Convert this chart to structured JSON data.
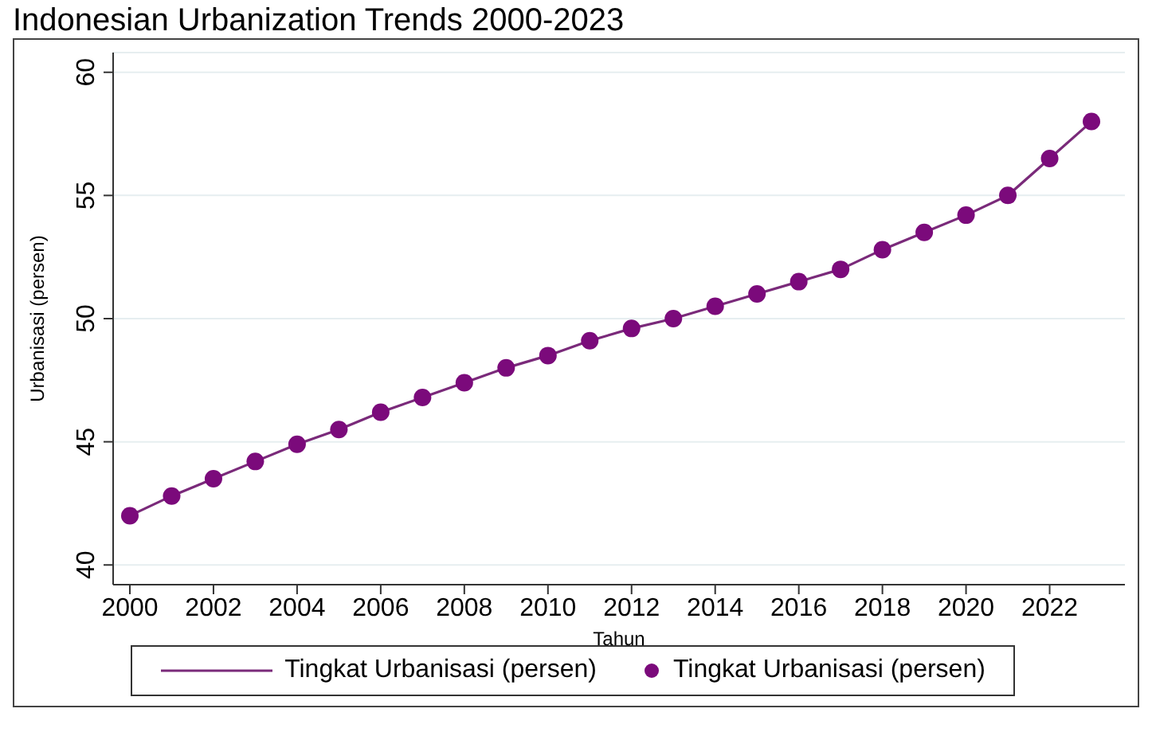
{
  "chart_data": {
    "type": "line",
    "title": "Indonesian Urbanization Trends 2000-2023",
    "xlabel": "Tahun",
    "ylabel": "Urbanisasi (persen)",
    "x": [
      2000,
      2001,
      2002,
      2003,
      2004,
      2005,
      2006,
      2007,
      2008,
      2009,
      2010,
      2011,
      2012,
      2013,
      2014,
      2015,
      2016,
      2017,
      2018,
      2019,
      2020,
      2021,
      2022,
      2023
    ],
    "series": [
      {
        "name": "Tingkat Urbanisasi (persen)",
        "type": "line",
        "color": "#7a2a7a",
        "marker": "none",
        "values": [
          42.0,
          42.8,
          43.5,
          44.2,
          44.9,
          45.5,
          46.2,
          46.8,
          47.4,
          48.0,
          48.5,
          49.1,
          49.6,
          50.0,
          50.5,
          51.0,
          51.5,
          52.0,
          52.8,
          53.5,
          54.2,
          55.0,
          56.5,
          58.0
        ]
      },
      {
        "name": "Tingkat Urbanisasi (persen)",
        "type": "scatter",
        "color": "#7b0a7b",
        "marker": "circle",
        "values": [
          42.0,
          42.8,
          43.5,
          44.2,
          44.9,
          45.5,
          46.2,
          46.8,
          47.4,
          48.0,
          48.5,
          49.1,
          49.6,
          50.0,
          50.5,
          51.0,
          51.5,
          52.0,
          52.8,
          53.5,
          54.2,
          55.0,
          56.5,
          58.0
        ]
      }
    ],
    "xlim": [
      1999.6,
      2023.8
    ],
    "xticks": [
      2000,
      2002,
      2004,
      2006,
      2008,
      2010,
      2012,
      2014,
      2016,
      2018,
      2020,
      2022
    ],
    "ylim": [
      39.2,
      60.8
    ],
    "yticks": [
      40,
      45,
      50,
      55,
      60
    ],
    "grid": "y",
    "legend": "bottom"
  }
}
